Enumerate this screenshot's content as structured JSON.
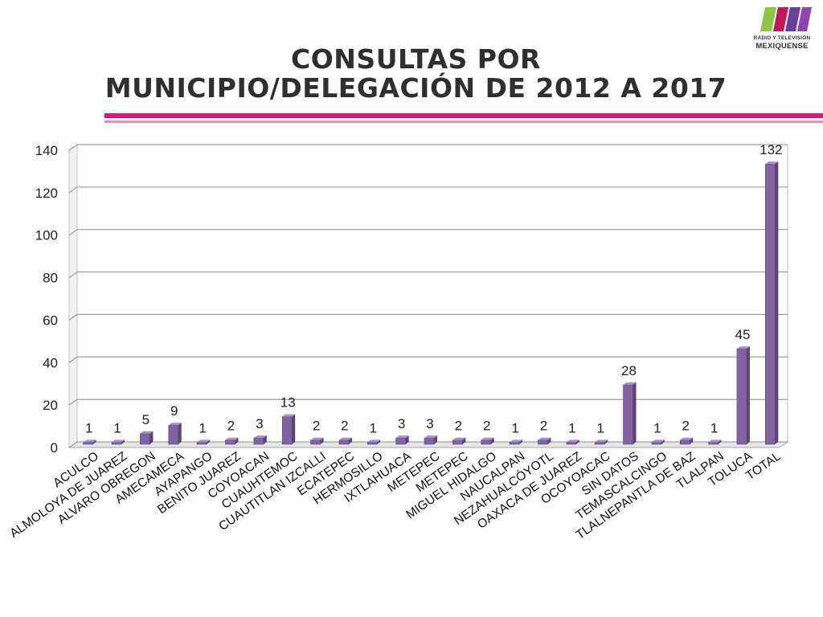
{
  "header": {
    "title_line1": "CONSULTAS POR",
    "title_line2": "MUNICIPIO/DELEGACIÓN DE 2012 A 2017",
    "logo_small": "RADIO Y TELEVISIÓN",
    "logo_main": "MEXIQUENSE"
  },
  "colors": {
    "accent": "#d6177f",
    "bar": "#8064a2",
    "bar_dark": "#5b4578",
    "bar_light": "#a690c4",
    "logo_stripes": [
      "#8dc63f",
      "#c2185b",
      "#6a3d9a",
      "#8e44ad"
    ]
  },
  "chart_data": {
    "type": "bar",
    "style": "3d-column",
    "title": "",
    "xlabel": "",
    "ylabel": "",
    "ylim": [
      0,
      140
    ],
    "yticks": [
      0,
      20,
      40,
      60,
      80,
      100,
      120,
      140
    ],
    "grid": true,
    "legend": "none",
    "categories": [
      "ACULCO",
      "ALMOLOYA DE JUAREZ",
      "ALVARO OBREGON",
      "AMECAMECA",
      "AYAPANGO",
      "BENITO JUAREZ",
      "COYOACAN",
      "CUAUHTEMOC",
      "CUAUTITLAN IZCALLI",
      "ECATEPEC",
      "HERMOSILLO",
      "IXTLAHUACA",
      "METEPEC",
      "METEPEC",
      "MIGUEL HIDALGO",
      "NAUCALPAN",
      "NEZAHUALCÓYOTL",
      "OAXACA DE JUAREZ",
      "OCOYOACAC",
      "SIN DATOS",
      "TEMASCALCINGO",
      "TLALNEPANTLA DE BAZ",
      "TLALPAN",
      "TOLUCA",
      "TOTAL"
    ],
    "values": [
      1,
      1,
      5,
      9,
      1,
      2,
      3,
      13,
      2,
      2,
      1,
      3,
      3,
      2,
      2,
      1,
      2,
      1,
      1,
      28,
      1,
      2,
      1,
      45,
      132
    ],
    "data_labels": [
      "1",
      "1",
      "5",
      "9",
      "1",
      "2",
      "3",
      "13",
      "2",
      "2",
      "1",
      "3",
      "3",
      "2",
      "2",
      "1",
      "2",
      "1",
      "1",
      "28",
      "1",
      "2",
      "1",
      "45",
      "132"
    ]
  }
}
